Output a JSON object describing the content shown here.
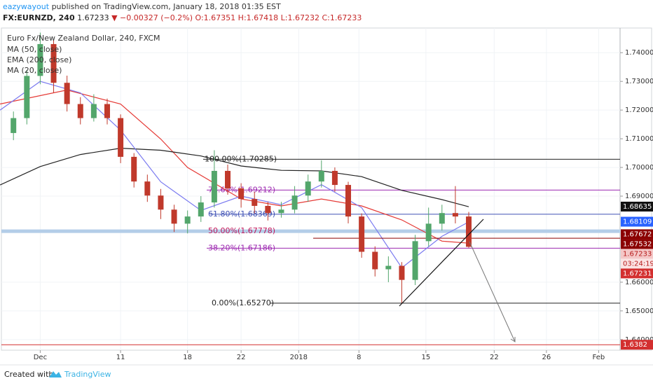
{
  "header": {
    "author": "eazywayout",
    "published": "published on TradingView.com, January 18, 2018 01:35 EST",
    "symbol": "FX:EURNZD, 240",
    "last": "1.67233",
    "change": "▼ −0.00327 (−0.2%)",
    "ohlc": [
      "O:1.67351",
      "H:1.67418",
      "L:1.67232",
      "C:1.67233"
    ]
  },
  "chart_data": {
    "type": "candlestick",
    "title": "Euro Fx/New Zealand Dollar, 240, FXCM",
    "xlim": [
      -2.9,
      43.3
    ],
    "ylim": [
      1.6363,
      1.7486
    ],
    "xticks": [
      {
        "value": 0,
        "label": "Dec"
      },
      {
        "value": 6,
        "label": "11"
      },
      {
        "value": 11,
        "label": "18"
      },
      {
        "value": 15,
        "label": "22"
      },
      {
        "value": 19.3,
        "label": "2018"
      },
      {
        "value": 23.8,
        "label": "8"
      },
      {
        "value": 28.8,
        "label": "15"
      },
      {
        "value": 33.9,
        "label": "22"
      },
      {
        "value": 37.8,
        "label": "26"
      },
      {
        "value": 41.7,
        "label": "Feb"
      }
    ],
    "yticks": [
      {
        "value": 1.74,
        "label": "1.74000"
      },
      {
        "value": 1.73,
        "label": "1.73000"
      },
      {
        "value": 1.72,
        "label": "1.72000"
      },
      {
        "value": 1.71,
        "label": "1.71000"
      },
      {
        "value": 1.7,
        "label": "1.70000"
      },
      {
        "value": 1.69,
        "label": "1.69000"
      },
      {
        "value": 1.66,
        "label": "1.66000"
      },
      {
        "value": 1.65,
        "label": "1.65000"
      },
      {
        "value": 1.64,
        "label": "1.64000"
      }
    ],
    "grid": true,
    "up_color": "#53a66b",
    "down_color": "#c0392b",
    "candles": [
      {
        "x": -2,
        "o": 1.712,
        "h": 1.7195,
        "l": 1.7095,
        "c": 1.7172
      },
      {
        "x": -1,
        "o": 1.7172,
        "h": 1.734,
        "l": 1.715,
        "c": 1.7319
      },
      {
        "x": 0,
        "o": 1.7319,
        "h": 1.747,
        "l": 1.729,
        "c": 1.743
      },
      {
        "x": 1,
        "o": 1.743,
        "h": 1.7445,
        "l": 1.726,
        "c": 1.7295
      },
      {
        "x": 2,
        "o": 1.7295,
        "h": 1.732,
        "l": 1.7195,
        "c": 1.7221
      },
      {
        "x": 3,
        "o": 1.7221,
        "h": 1.7245,
        "l": 1.715,
        "c": 1.7172
      },
      {
        "x": 4,
        "o": 1.7172,
        "h": 1.7255,
        "l": 1.716,
        "c": 1.7221
      },
      {
        "x": 5,
        "o": 1.7221,
        "h": 1.724,
        "l": 1.715,
        "c": 1.7172
      },
      {
        "x": 6,
        "o": 1.7172,
        "h": 1.7185,
        "l": 1.7015,
        "c": 1.7037
      },
      {
        "x": 7,
        "o": 1.7037,
        "h": 1.705,
        "l": 1.693,
        "c": 1.6951
      },
      {
        "x": 8,
        "o": 1.6951,
        "h": 1.6975,
        "l": 1.688,
        "c": 1.6902
      },
      {
        "x": 9,
        "o": 1.6902,
        "h": 1.6925,
        "l": 1.682,
        "c": 1.6853
      },
      {
        "x": 10,
        "o": 1.6853,
        "h": 1.687,
        "l": 1.6775,
        "c": 1.6804
      },
      {
        "x": 11,
        "o": 1.6804,
        "h": 1.685,
        "l": 1.677,
        "c": 1.6829
      },
      {
        "x": 12,
        "o": 1.6829,
        "h": 1.69,
        "l": 1.681,
        "c": 1.6878
      },
      {
        "x": 13,
        "o": 1.6878,
        "h": 1.706,
        "l": 1.686,
        "c": 1.6988
      },
      {
        "x": 14,
        "o": 1.6988,
        "h": 1.701,
        "l": 1.6905,
        "c": 1.6927
      },
      {
        "x": 15,
        "o": 1.6927,
        "h": 1.6945,
        "l": 1.686,
        "c": 1.689
      },
      {
        "x": 16,
        "o": 1.689,
        "h": 1.6915,
        "l": 1.684,
        "c": 1.6866
      },
      {
        "x": 17,
        "o": 1.6866,
        "h": 1.688,
        "l": 1.6815,
        "c": 1.6841
      },
      {
        "x": 18,
        "o": 1.6841,
        "h": 1.688,
        "l": 1.6825,
        "c": 1.6853
      },
      {
        "x": 19,
        "o": 1.6853,
        "h": 1.6935,
        "l": 1.684,
        "c": 1.6902
      },
      {
        "x": 20,
        "o": 1.6902,
        "h": 1.6975,
        "l": 1.688,
        "c": 1.6951
      },
      {
        "x": 21,
        "o": 1.6951,
        "h": 1.7025,
        "l": 1.693,
        "c": 1.6988
      },
      {
        "x": 22,
        "o": 1.6988,
        "h": 1.7,
        "l": 1.6915,
        "c": 1.6939
      },
      {
        "x": 23,
        "o": 1.6939,
        "h": 1.695,
        "l": 1.6805,
        "c": 1.6829
      },
      {
        "x": 24,
        "o": 1.6829,
        "h": 1.684,
        "l": 1.6685,
        "c": 1.6706
      },
      {
        "x": 25,
        "o": 1.6706,
        "h": 1.6725,
        "l": 1.662,
        "c": 1.6645
      },
      {
        "x": 26,
        "o": 1.6645,
        "h": 1.669,
        "l": 1.66,
        "c": 1.6657
      },
      {
        "x": 27,
        "o": 1.6657,
        "h": 1.667,
        "l": 1.6527,
        "c": 1.6608
      },
      {
        "x": 28,
        "o": 1.6608,
        "h": 1.6765,
        "l": 1.659,
        "c": 1.6743
      },
      {
        "x": 29,
        "o": 1.6743,
        "h": 1.686,
        "l": 1.6725,
        "c": 1.6804
      },
      {
        "x": 30,
        "o": 1.6804,
        "h": 1.687,
        "l": 1.678,
        "c": 1.6841
      },
      {
        "x": 31,
        "o": 1.6841,
        "h": 1.6935,
        "l": 1.6805,
        "c": 1.6829
      },
      {
        "x": 32,
        "o": 1.6829,
        "h": 1.6845,
        "l": 1.672,
        "c": 1.67233
      }
    ],
    "series": [
      {
        "name": "MA (50, close)",
        "color": "#e53935",
        "x": [
          -3,
          2,
          6,
          9,
          11,
          15,
          18,
          21,
          24,
          27,
          30,
          32
        ],
        "values": [
          1.7221,
          1.727,
          1.7221,
          1.7099,
          1.7,
          1.689,
          1.6866,
          1.689,
          1.6866,
          1.6817,
          1.6743,
          1.6736
        ]
      },
      {
        "name": "EMA (200, close)",
        "color": "#222222",
        "x": [
          -3,
          0,
          3,
          6,
          9,
          12,
          15,
          18,
          21,
          24,
          27,
          30,
          32
        ],
        "values": [
          1.6939,
          1.7003,
          1.7045,
          1.7067,
          1.706,
          1.704,
          1.7005,
          1.699,
          1.6988,
          1.6968,
          1.692,
          1.6888,
          1.6863
        ]
      },
      {
        "name": "MA (20, close)",
        "color": "#7b7bf0",
        "x": [
          -3,
          0,
          3,
          6,
          9,
          12,
          15,
          18,
          21,
          24,
          27,
          30,
          32
        ],
        "values": [
          1.72,
          1.73,
          1.726,
          1.713,
          1.695,
          1.685,
          1.69,
          1.687,
          1.694,
          1.686,
          1.665,
          1.676,
          1.681
        ]
      }
    ],
    "fib": [
      {
        "label": "100.00%(1.70285)",
        "value": 1.70285,
        "color": "#222222"
      },
      {
        "label": "78.60%(1.69212)",
        "value": 1.69212,
        "color": "#9c27b0"
      },
      {
        "label": "61.80%(1.68369)",
        "value": 1.68369,
        "color": "#3f51b5"
      },
      {
        "label": "50.00%(1.67778)",
        "value": 1.67778,
        "color": "#c2185b"
      },
      {
        "label": "38.20%(1.67186)",
        "value": 1.67186,
        "color": "#9c27b0"
      },
      {
        "label": "0.00%(1.65270)",
        "value": 1.6527,
        "color": "#222222"
      }
    ],
    "price_labels": [
      {
        "value": 1.68635,
        "color": "#111111"
      },
      {
        "value": 1.68109,
        "color": "#2962ff"
      },
      {
        "value": 1.67672,
        "color": "#8b0000"
      },
      {
        "value": 1.67532,
        "color": "#8b0000"
      },
      {
        "value": 1.67233,
        "color": "#f4c7c7"
      },
      {
        "value": 1.67231,
        "color": "#d32f2f"
      },
      {
        "value": 1.6382,
        "color": "#d32f2f"
      }
    ],
    "countdown": "03:24:19"
  },
  "footer": {
    "created": "Created with",
    "brand": "TradingView"
  }
}
